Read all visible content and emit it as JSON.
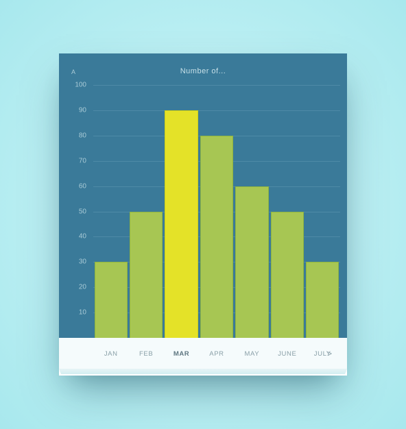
{
  "chart": {
    "type": "bar",
    "title": "Number of...",
    "y_symbol": "A",
    "background_color": "#3a7a99",
    "title_color": "#c7e0e8",
    "ylabel_color": "#a8cad6",
    "grid_color": "#4e8aa7",
    "grid_color_strong": "#6aa0b8",
    "bar_color": "#a7c653",
    "bar_border_color": "#8fb43f",
    "highlight_color": "#e4e228",
    "highlight_border_color": "#cfd017",
    "ymax": 100,
    "yticks": [
      100,
      90,
      80,
      70,
      60,
      50,
      40,
      30,
      20,
      10
    ],
    "categories": [
      "JAN",
      "FEB",
      "MAR",
      "APR",
      "MAY",
      "JUNE",
      "JULY"
    ],
    "values": [
      30,
      50,
      90,
      80,
      60,
      50,
      30
    ],
    "highlight_index": 2,
    "xaxis_bg": "#f5fbfc",
    "xlabel_color": "#8aa0a8",
    "xlabel_active_color": "#5e7680",
    "next_glyph": ">"
  },
  "page_bg_inner": "#d4f5f7",
  "page_bg_outer": "#a8e8ed"
}
